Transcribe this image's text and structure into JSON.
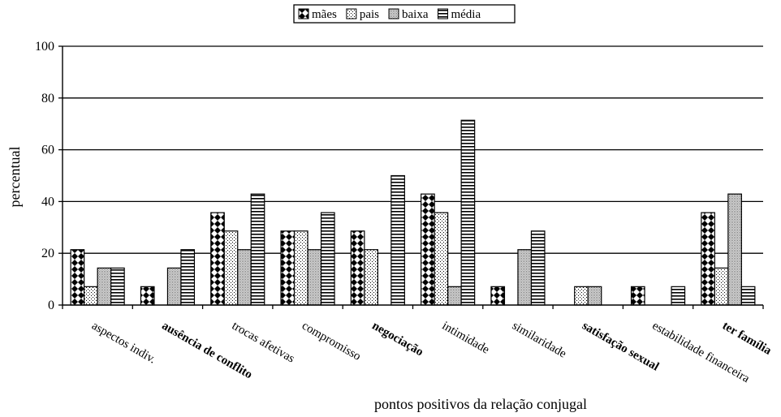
{
  "chart_data": {
    "type": "bar",
    "title": "",
    "xlabel": "pontos positivos da relação conjugal",
    "ylabel": "percentual",
    "ylim": [
      0,
      100
    ],
    "yticks": [
      0,
      20,
      40,
      60,
      80,
      100
    ],
    "grid": true,
    "legend_position": "top-center",
    "categories": [
      "aspectos indiv.",
      "ausência de conflito",
      "trocas afetivas",
      "compromisso",
      "negociação",
      "intimidade",
      "similaridade",
      "satisfação sexual",
      "estabilidade financeira",
      "ter família"
    ],
    "bold_categories": [
      "ausência de conflito",
      "negociação",
      "satisfação sexual",
      "ter família"
    ],
    "series": [
      {
        "name": "mães",
        "pattern": "diamond",
        "values": [
          21.4,
          7.1,
          35.7,
          28.6,
          28.6,
          42.9,
          7.1,
          0,
          7.1,
          35.7
        ]
      },
      {
        "name": "pais",
        "pattern": "dots",
        "values": [
          7.1,
          0,
          28.6,
          28.6,
          21.4,
          35.7,
          0,
          7.1,
          0,
          14.3
        ]
      },
      {
        "name": "baixa",
        "pattern": "fine",
        "values": [
          14.3,
          14.3,
          21.4,
          21.4,
          0,
          7.1,
          21.4,
          7.1,
          0,
          42.9
        ]
      },
      {
        "name": "média",
        "pattern": "hlines",
        "values": [
          14.3,
          21.4,
          42.9,
          35.7,
          50.0,
          71.4,
          28.6,
          0,
          7.1,
          7.1
        ]
      }
    ]
  }
}
